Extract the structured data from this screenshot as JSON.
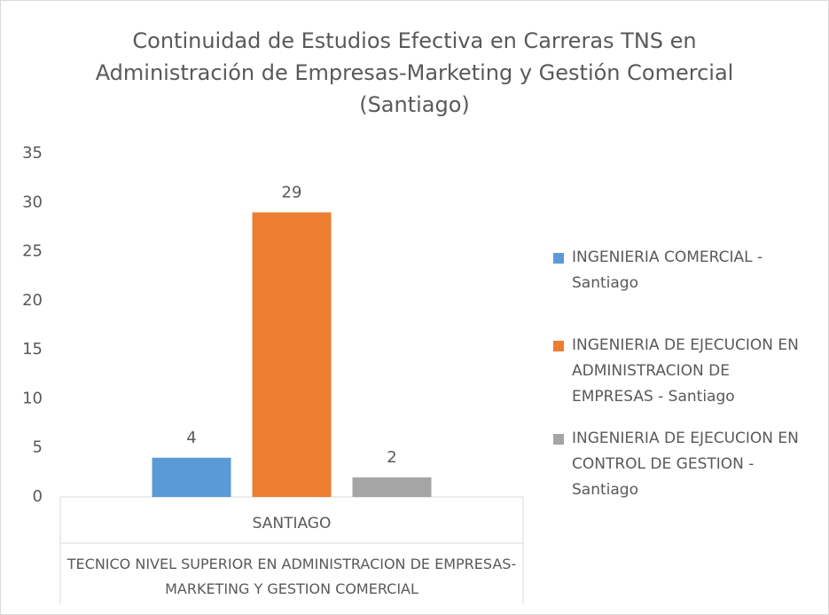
{
  "chart_data": {
    "type": "bar",
    "title": "Continuidad de Estudios Efectiva en Carreras TNS en Administración de Empresas-Marketing y Gestión Comercial (Santiago)",
    "categories": [
      "SANTIAGO"
    ],
    "category_group": "TECNICO NIVEL SUPERIOR EN ADMINISTRACION DE EMPRESAS-MARKETING Y GESTION COMERCIAL",
    "series": [
      {
        "name": "INGENIERIA COMERCIAL - Santiago",
        "color": "#5b9bd5",
        "values": [
          4
        ]
      },
      {
        "name": "INGENIERIA DE EJECUCION EN ADMINISTRACION DE EMPRESAS - Santiago",
        "color": "#ed7d31",
        "values": [
          29
        ]
      },
      {
        "name": "INGENIERIA DE EJECUCION EN CONTROL DE GESTION - Santiago",
        "color": "#a5a5a5",
        "values": [
          2
        ]
      }
    ],
    "ylim": [
      0,
      35
    ],
    "yticks": [
      0,
      5,
      10,
      15,
      20,
      25,
      30,
      35
    ],
    "grid": false,
    "legend": "right"
  }
}
